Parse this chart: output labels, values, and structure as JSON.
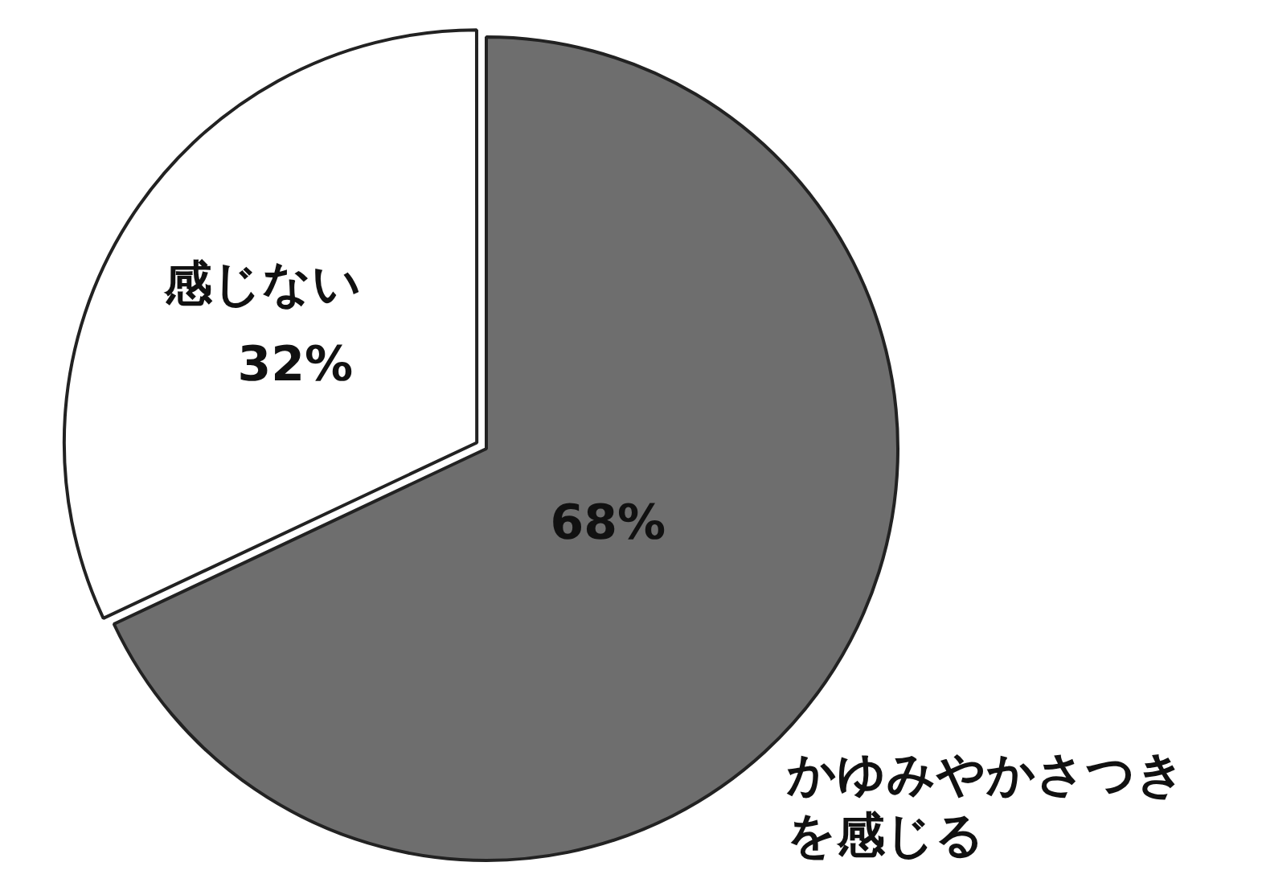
{
  "chart_data": {
    "type": "pie",
    "categories": [
      "かゆみやかさつきを感じる",
      "感じない"
    ],
    "values": [
      68,
      32
    ],
    "colors": [
      "#6e6e6e",
      "#ffffff"
    ],
    "value_labels": [
      "68%",
      "32%"
    ],
    "legend": false
  }
}
